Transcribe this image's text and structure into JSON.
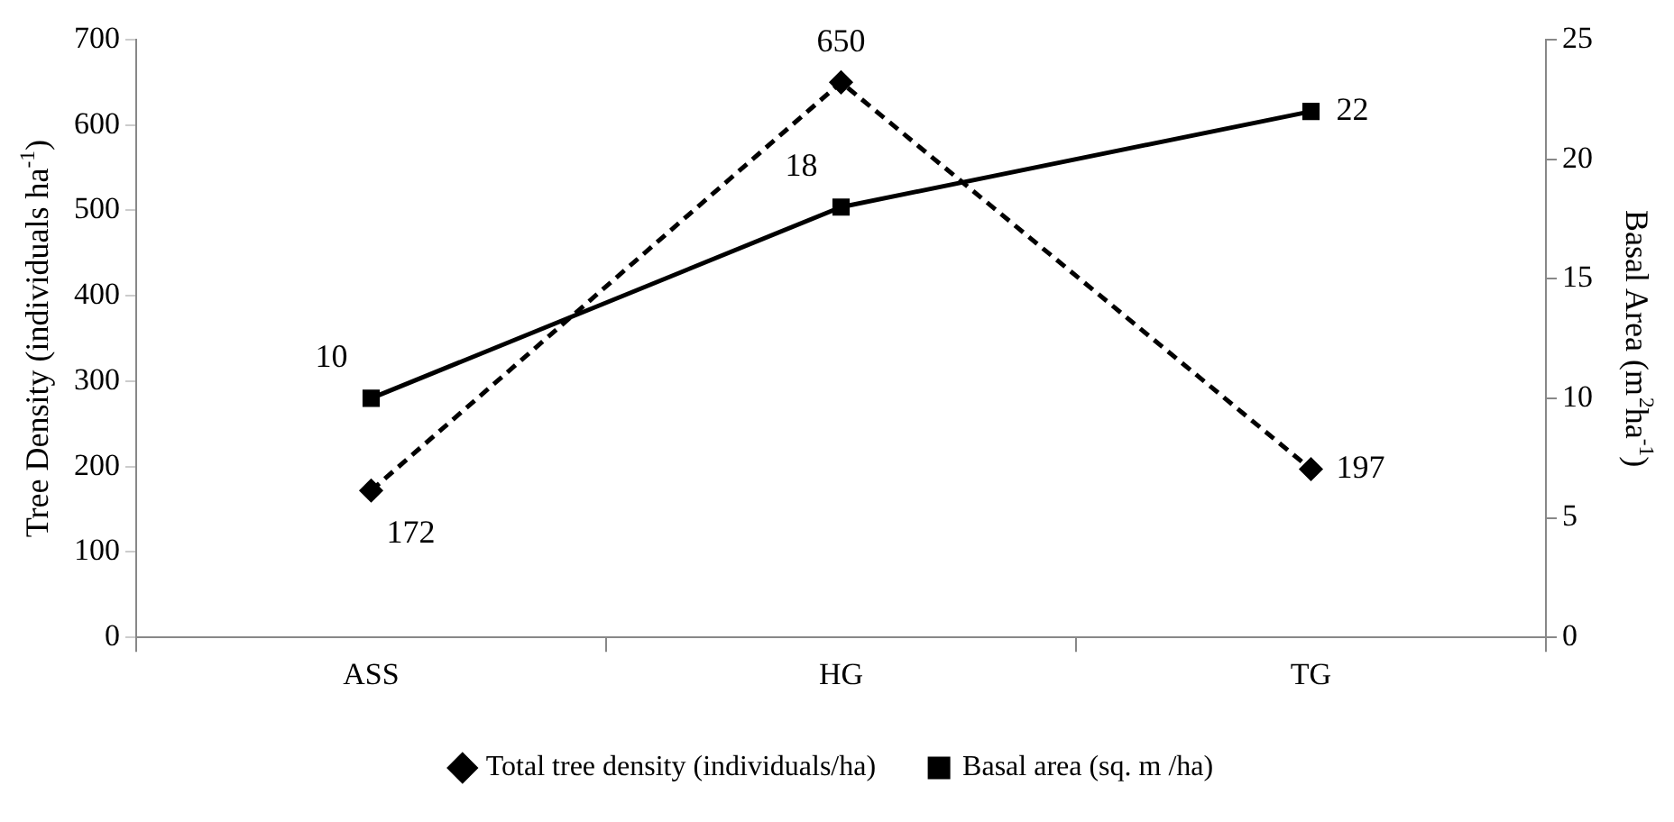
{
  "chart_data": {
    "type": "line",
    "categories": [
      "ASS",
      "HG",
      "TG"
    ],
    "ylabel": "Tree Density (individuals ha$^{-1}$)",
    "y2label": "Basal Area (m$^{2}$ha$^{-1}$)",
    "series": [
      {
        "name": "Total tree density (individuals/ha)",
        "color": "#000000",
        "values": [
          172,
          650,
          197
        ],
        "marker": "diamond",
        "line_style": "dashed"
      },
      {
        "name": "Basal area (sq. m /ha)",
        "color": "#000000",
        "values": [
          10,
          18,
          22
        ],
        "axis": "y2",
        "marker": "square",
        "line_style": "solid"
      }
    ],
    "ylim": [
      0,
      700
    ],
    "yticks": [
      0,
      100,
      200,
      300,
      400,
      500,
      600,
      700
    ],
    "y2lim": [
      0,
      25
    ],
    "y2ticks": [
      0,
      5,
      10,
      15,
      20,
      25
    ],
    "grid": false,
    "legend": "bottom",
    "data_labels": true
  }
}
